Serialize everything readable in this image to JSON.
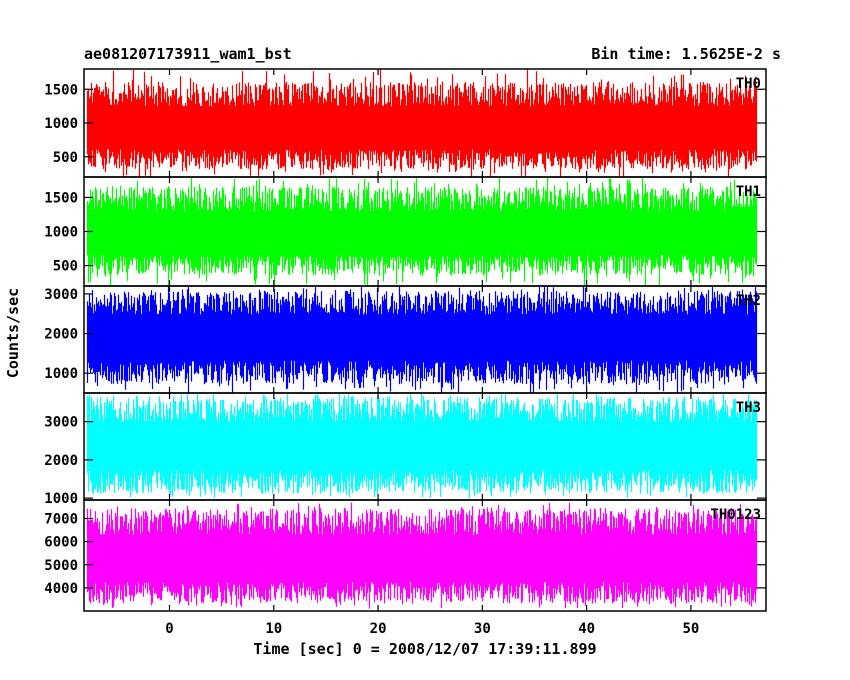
{
  "header": {
    "title": "ae081207173911_wam1_bst",
    "bin_time": "Bin time: 1.5625E-2 s"
  },
  "axes": {
    "xlabel": "Time [sec] 0 = 2008/12/07 17:39:11.899",
    "ylabel": "Counts/sec"
  },
  "chart_data": {
    "type": "line",
    "title": "ae081207173911_wam1_bst",
    "xlabel": "Time [sec] 0 = 2008/12/07 17:39:11.899",
    "ylabel": "Counts/sec",
    "bin_time_s": 0.015625,
    "xlim": [
      -8.2,
      57.2
    ],
    "data_x_range": [
      -7.9,
      56.3
    ],
    "x_ticks": [
      0,
      10,
      20,
      30,
      40,
      50
    ],
    "grid": false,
    "panels": [
      {
        "name": "TH0",
        "color": "#ff0000",
        "ylim": [
          200,
          1800
        ],
        "y_ticks": [
          500,
          1000,
          1500
        ],
        "mean": 900,
        "typical_low": 400,
        "typical_high": 1500,
        "min": 180,
        "max": 1800
      },
      {
        "name": "TH1",
        "color": "#00ff00",
        "ylim": [
          200,
          1800
        ],
        "y_ticks": [
          500,
          1000,
          1500
        ],
        "mean": 950,
        "typical_low": 450,
        "typical_high": 1550,
        "min": 200,
        "max": 1800
      },
      {
        "name": "TH2",
        "color": "#0000ff",
        "ylim": [
          500,
          3200
        ],
        "y_ticks": [
          1000,
          2000,
          3000
        ],
        "mean": 1900,
        "typical_low": 900,
        "typical_high": 2900,
        "min": 500,
        "max": 3200
      },
      {
        "name": "TH3",
        "color": "#00ffff",
        "ylim": [
          950,
          3750
        ],
        "y_ticks": [
          1000,
          2000,
          3000
        ],
        "mean": 2350,
        "typical_low": 1300,
        "typical_high": 3450,
        "min": 1000,
        "max": 3750
      },
      {
        "name": "TH0123",
        "color": "#ff00ff",
        "ylim": [
          3000,
          7800
        ],
        "y_ticks": [
          4000,
          5000,
          6000,
          7000
        ],
        "mean": 5150,
        "typical_low": 3600,
        "typical_high": 7100,
        "min": 3100,
        "max": 7700
      }
    ]
  }
}
